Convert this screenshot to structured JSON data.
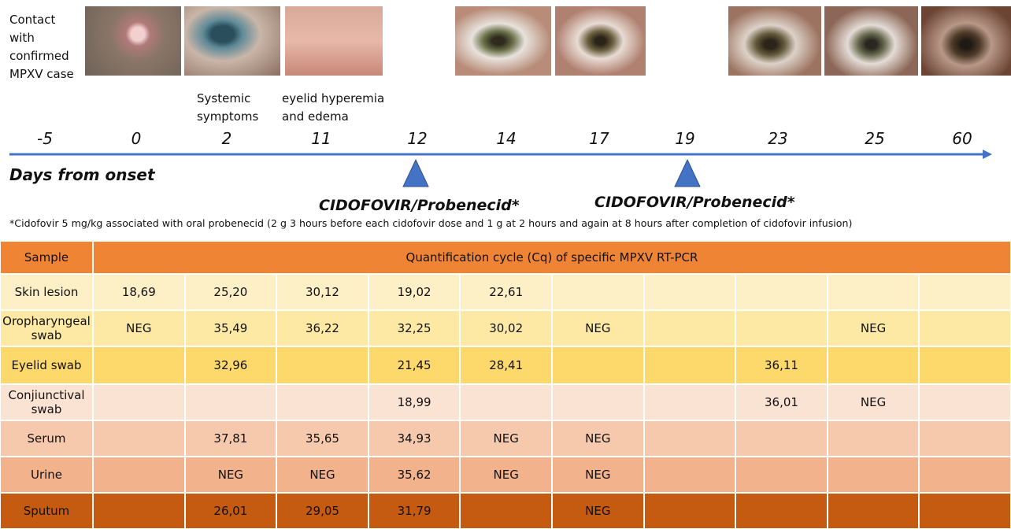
{
  "timeline": {
    "notes": [
      {
        "lines": [
          "Contact",
          "with",
          "confirmed",
          "MPXV case"
        ]
      },
      {
        "lines": [
          "Systemic",
          "symptoms"
        ]
      },
      {
        "lines": [
          "eyelid hyperemia",
          "and edema"
        ]
      }
    ],
    "days": [
      -5,
      0,
      2,
      11,
      12,
      14,
      17,
      19,
      23,
      25,
      60
    ],
    "axis_label": "Days from onset",
    "treatments": [
      "CIDOFOVIR/Probenecid*",
      "CIDOFOVIR/Probenecid*"
    ],
    "footnote": "*Cidofovir 5 mg/kg associated with oral probenecid (2 g 3 hours before each cidofovir dose and 1 g at 2 hours and again at 8 hours after completion of cidofovir infusion)"
  },
  "table": {
    "header": [
      "Sample",
      "Quantification cycle (Cq) of specific MPXV RT-PCR"
    ],
    "rows": [
      [
        "Skin lesion",
        "18,69",
        "25,20",
        "30,12",
        "19,02",
        "22,61",
        null,
        null,
        null,
        null,
        null
      ],
      [
        "Oropharyngeal swab",
        "NEG",
        "35,49",
        "36,22",
        "32,25",
        "30,02",
        "NEG",
        null,
        null,
        "NEG",
        null
      ],
      [
        "Eyelid swab",
        null,
        "32,96",
        null,
        "21,45",
        "28,41",
        null,
        null,
        "36,11",
        null,
        null
      ],
      [
        "Conjiunctival swab",
        null,
        null,
        null,
        "18,99",
        null,
        null,
        null,
        "36,01",
        "NEG",
        null
      ],
      [
        "Serum",
        null,
        "37,81",
        "35,65",
        "34,93",
        "NEG",
        "NEG",
        null,
        null,
        null,
        null
      ],
      [
        "Urine",
        null,
        "NEG",
        "NEG",
        "35,62",
        "NEG",
        "NEG",
        null,
        null,
        null,
        null
      ],
      [
        "Sputum",
        null,
        "26,01",
        "29,05",
        "31,79",
        null,
        "NEG",
        null,
        null,
        null,
        null
      ]
    ]
  }
}
